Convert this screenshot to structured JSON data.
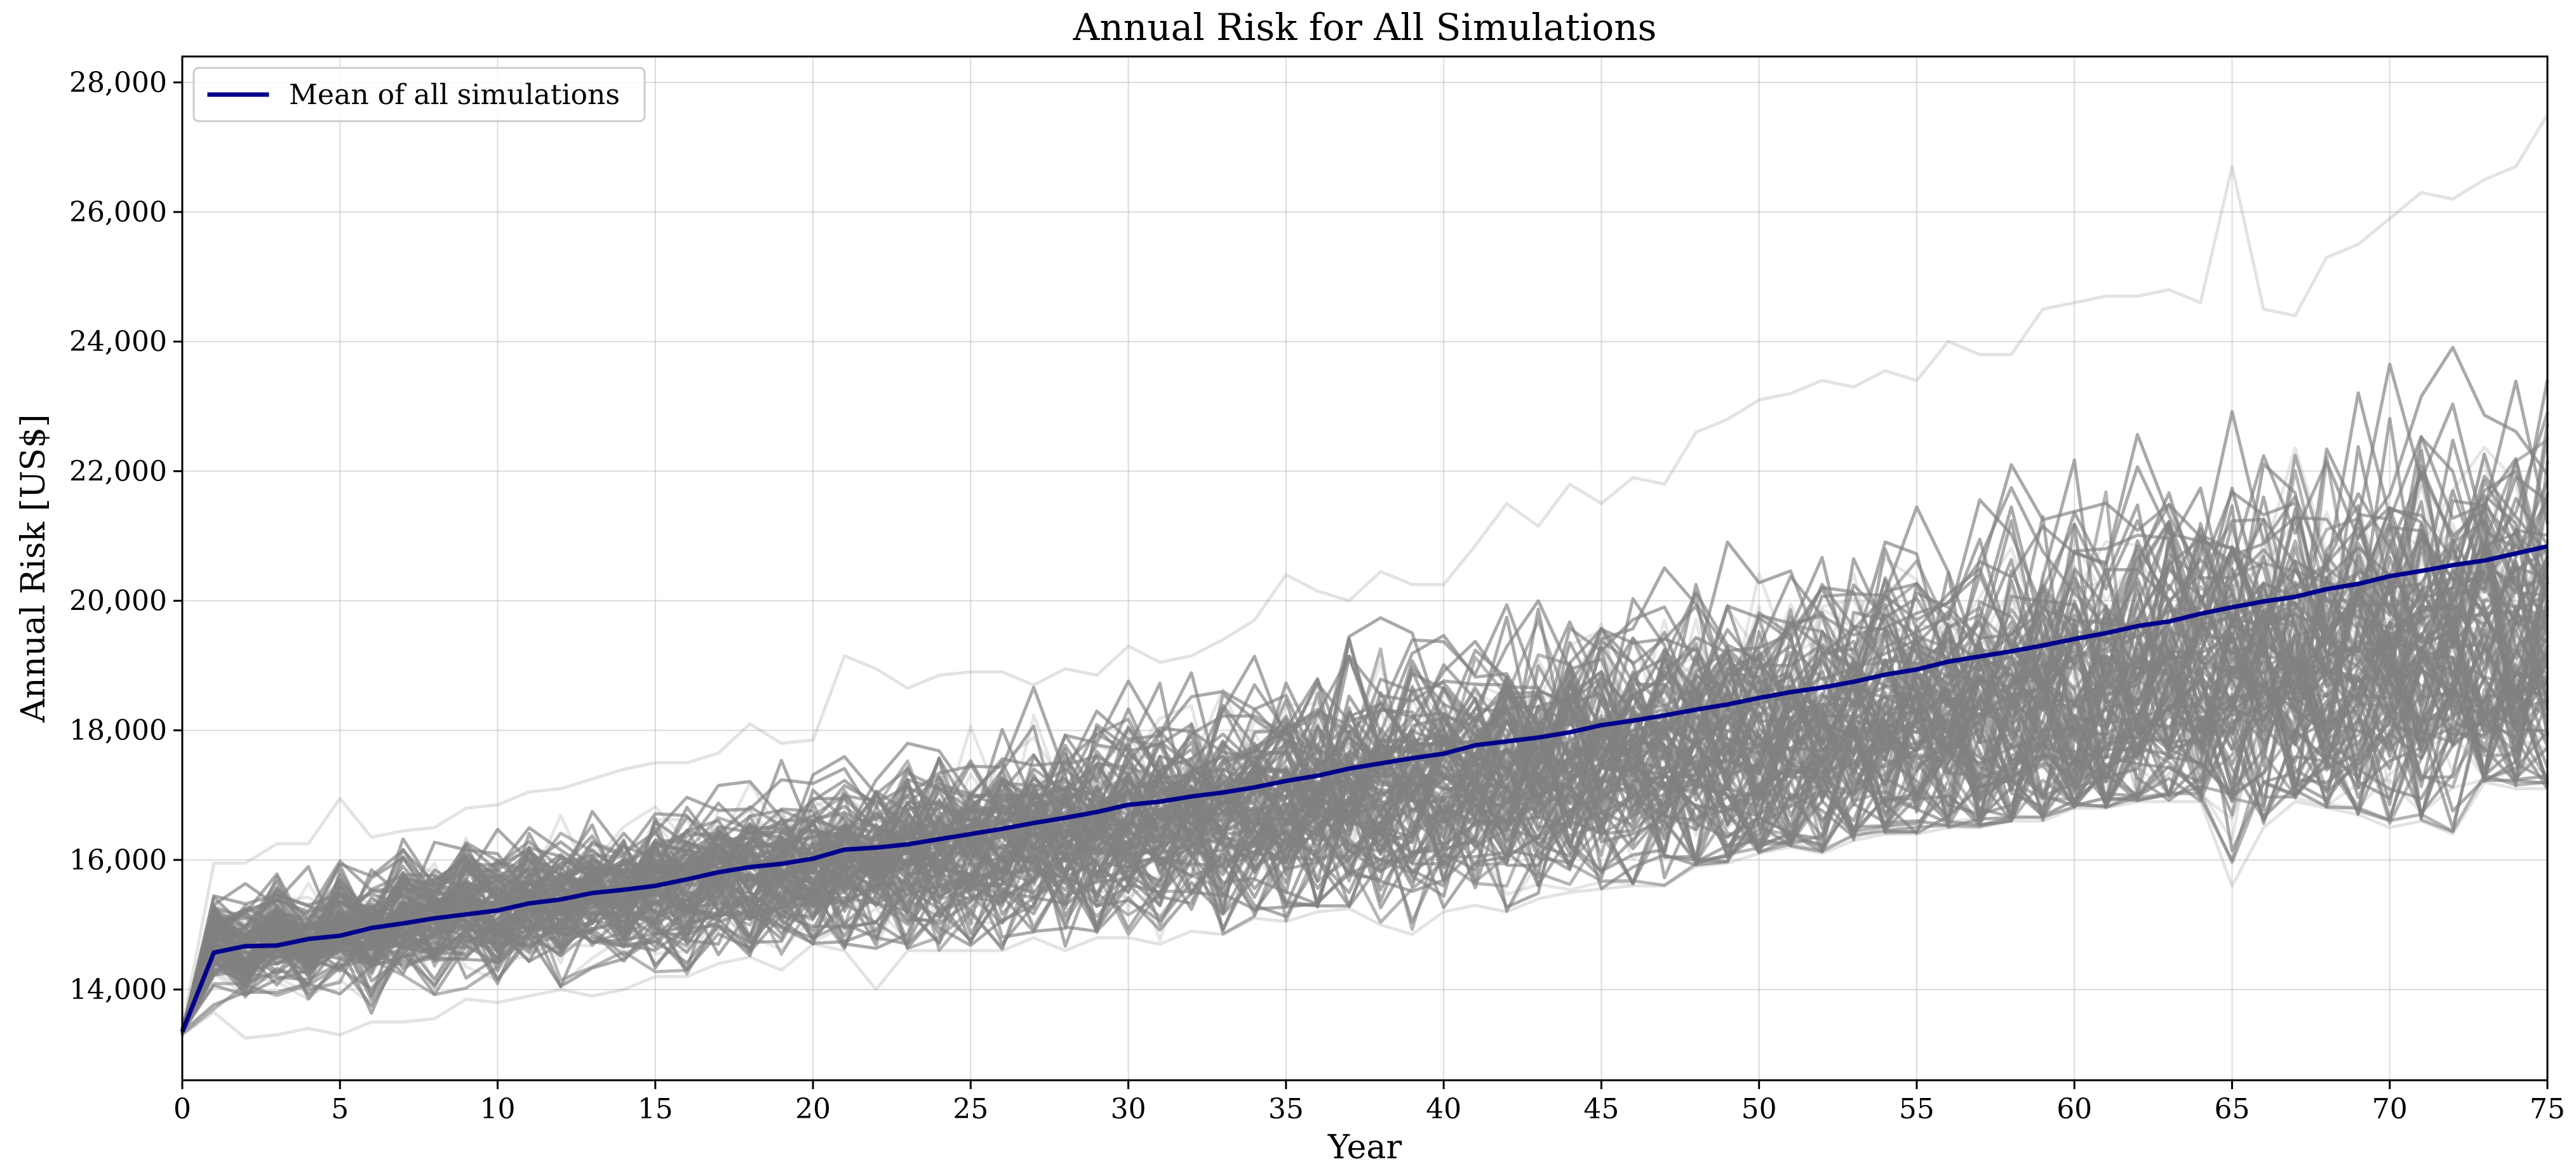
{
  "chart_data": {
    "type": "line",
    "title": "Annual Risk for All Simulations",
    "xlabel": "Year",
    "ylabel": "Annual Risk [US$]",
    "xlim": [
      0,
      75
    ],
    "ylim": [
      12600,
      28400
    ],
    "grid": true,
    "legend_position": "top-left",
    "x_ticks": [
      0,
      5,
      10,
      15,
      20,
      25,
      30,
      35,
      40,
      45,
      50,
      55,
      60,
      65,
      70,
      75
    ],
    "x_tick_labels": [
      "0",
      "5",
      "10",
      "15",
      "20",
      "25",
      "30",
      "35",
      "40",
      "45",
      "50",
      "55",
      "60",
      "65",
      "70",
      "75"
    ],
    "y_ticks": [
      14000,
      16000,
      18000,
      20000,
      22000,
      24000,
      26000,
      28000
    ],
    "y_tick_labels": [
      "14,000",
      "16,000",
      "18,000",
      "20,000",
      "22,000",
      "24,000",
      "26,000",
      "28,000"
    ],
    "series": [
      {
        "name": "Mean of all simulations",
        "color": "#00008b",
        "x": [
          0,
          1,
          2,
          3,
          4,
          5,
          6,
          7,
          8,
          9,
          10,
          11,
          12,
          13,
          14,
          15,
          16,
          17,
          18,
          19,
          20,
          21,
          22,
          23,
          24,
          25,
          26,
          27,
          28,
          29,
          30,
          31,
          32,
          33,
          34,
          35,
          36,
          37,
          38,
          39,
          40,
          41,
          42,
          43,
          44,
          45,
          46,
          47,
          48,
          49,
          50,
          51,
          52,
          53,
          54,
          55,
          56,
          57,
          58,
          59,
          60,
          61,
          62,
          63,
          64,
          65,
          66,
          67,
          68,
          69,
          70,
          71,
          72,
          73,
          74,
          75
        ],
        "values": [
          13350,
          14570,
          14670,
          14680,
          14780,
          14830,
          14950,
          15020,
          15100,
          15160,
          15220,
          15330,
          15390,
          15490,
          15540,
          15600,
          15700,
          15810,
          15890,
          15940,
          16020,
          16160,
          16190,
          16240,
          16320,
          16400,
          16480,
          16570,
          16650,
          16740,
          16850,
          16900,
          16980,
          17040,
          17120,
          17220,
          17300,
          17410,
          17490,
          17570,
          17640,
          17770,
          17830,
          17890,
          17970,
          18080,
          18150,
          18230,
          18320,
          18400,
          18500,
          18590,
          18660,
          18750,
          18860,
          18940,
          19060,
          19140,
          19220,
          19310,
          19410,
          19500,
          19610,
          19680,
          19800,
          19900,
          19990,
          20060,
          20180,
          20260,
          20380,
          20460,
          20550,
          20620,
          20730,
          20840
        ]
      }
    ],
    "simulations": {
      "color": "#808080",
      "band_center_start": 14600,
      "band_center_slope_per_year": 69,
      "band_halfwidth_start": 550,
      "band_halfwidth_slope_per_year": 23,
      "seasonal_amplitude_early": 330,
      "envelope_upper": [
        13400,
        15950,
        15950,
        16250,
        16250,
        16950,
        16350,
        16450,
        16500,
        16800,
        16850,
        17050,
        17100,
        17250,
        17400,
        17500,
        17500,
        17650,
        18100,
        17800,
        17850,
        19150,
        18950,
        18650,
        18850,
        18900,
        18900,
        18700,
        18950,
        18850,
        19300,
        19050,
        19150,
        19400,
        19700,
        20400,
        20150,
        20000,
        20450,
        20250,
        20250,
        20850,
        21500,
        21150,
        21800,
        21500,
        21900,
        21800,
        22600,
        22800,
        23100,
        23200,
        23400,
        23300,
        23550,
        23400,
        24000,
        23800,
        23800,
        24500,
        24600,
        24700,
        24700,
        24800,
        24600,
        26700,
        24500,
        24400,
        25300,
        25500,
        25900,
        26300,
        26200,
        26500,
        26700,
        27500
      ],
      "envelope_lower": [
        13300,
        13650,
        13250,
        13300,
        13400,
        13300,
        13500,
        13500,
        13550,
        13850,
        13800,
        13900,
        14000,
        13900,
        14000,
        14200,
        14200,
        14400,
        14500,
        14300,
        14700,
        14600,
        14000,
        14600,
        14600,
        14600,
        14600,
        14800,
        14600,
        14800,
        14800,
        14700,
        14900,
        14850,
        15100,
        15050,
        15200,
        15250,
        15000,
        14850,
        15200,
        15300,
        15200,
        15400,
        15500,
        15550,
        15600,
        15600,
        15900,
        15950,
        16100,
        16200,
        16100,
        16300,
        16400,
        16400,
        16500,
        16500,
        16600,
        16600,
        16800,
        16800,
        16900,
        16900,
        16900,
        15600,
        16500,
        16900,
        16800,
        16700,
        16500,
        16600,
        16400,
        17200,
        17100,
        17100
      ]
    }
  }
}
